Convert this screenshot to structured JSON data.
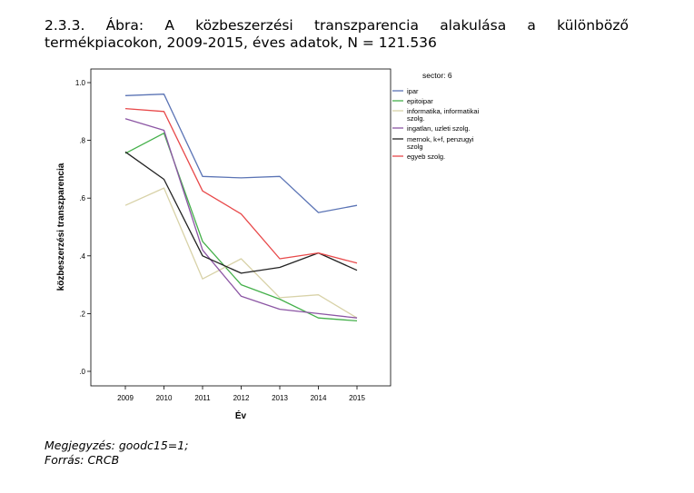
{
  "caption": {
    "line1": [
      "2.3.3.",
      "Ábra:",
      "A",
      "közbeszerzési",
      "transzparencia",
      "alakulása",
      "a",
      "különböző"
    ],
    "line2": "termékpiacokon, 2009-2015, éves adatok, N = 121.536"
  },
  "note": {
    "line1": "Megjegyzés: goodc15=1;",
    "line2": "Forrás: CRCB"
  },
  "chart_data": {
    "type": "line",
    "xlabel": "Év",
    "ylabel": "közbeszerzési transzparencia",
    "x": [
      2009,
      2010,
      2011,
      2012,
      2013,
      2014,
      2015
    ],
    "x_tick_labels": [
      "2009",
      "2010",
      "2011",
      "2012",
      "2013",
      "2014",
      "2015"
    ],
    "ylim": [
      -0.05,
      1.05
    ],
    "y_ticks": [
      0,
      0.2,
      0.4,
      0.6,
      0.8,
      1.0
    ],
    "y_tick_labels": [
      ".0",
      ".2",
      ".4",
      ".6",
      ".8",
      "1.0"
    ],
    "grid": false,
    "legend_title": "sector: 6",
    "legend_position": "right",
    "series": [
      {
        "name": "ipar",
        "color": "#5b74b5",
        "values": [
          0.955,
          0.96,
          0.675,
          0.67,
          0.675,
          0.55,
          0.575
        ]
      },
      {
        "name": "epitoipar",
        "color": "#44b04a",
        "values": [
          0.755,
          0.825,
          0.45,
          0.3,
          0.25,
          0.185,
          0.175
        ]
      },
      {
        "name": "informatika, informatikai szolg.",
        "color": "#d8d2a8",
        "values": [
          0.575,
          0.635,
          0.32,
          0.39,
          0.255,
          0.265,
          0.185
        ]
      },
      {
        "name": "ingatlan, uzleti szolg.",
        "color": "#8c56a4",
        "values": [
          0.875,
          0.835,
          0.42,
          0.26,
          0.215,
          0.2,
          0.185
        ]
      },
      {
        "name": "mernok, k+f, penzugyi szolg",
        "color": "#222222",
        "values": [
          0.76,
          0.665,
          0.4,
          0.34,
          0.36,
          0.41,
          0.35
        ]
      },
      {
        "name": "egyeb szolg.",
        "color": "#e8494a",
        "values": [
          0.91,
          0.9,
          0.625,
          0.545,
          0.39,
          0.41,
          0.375
        ]
      }
    ]
  }
}
